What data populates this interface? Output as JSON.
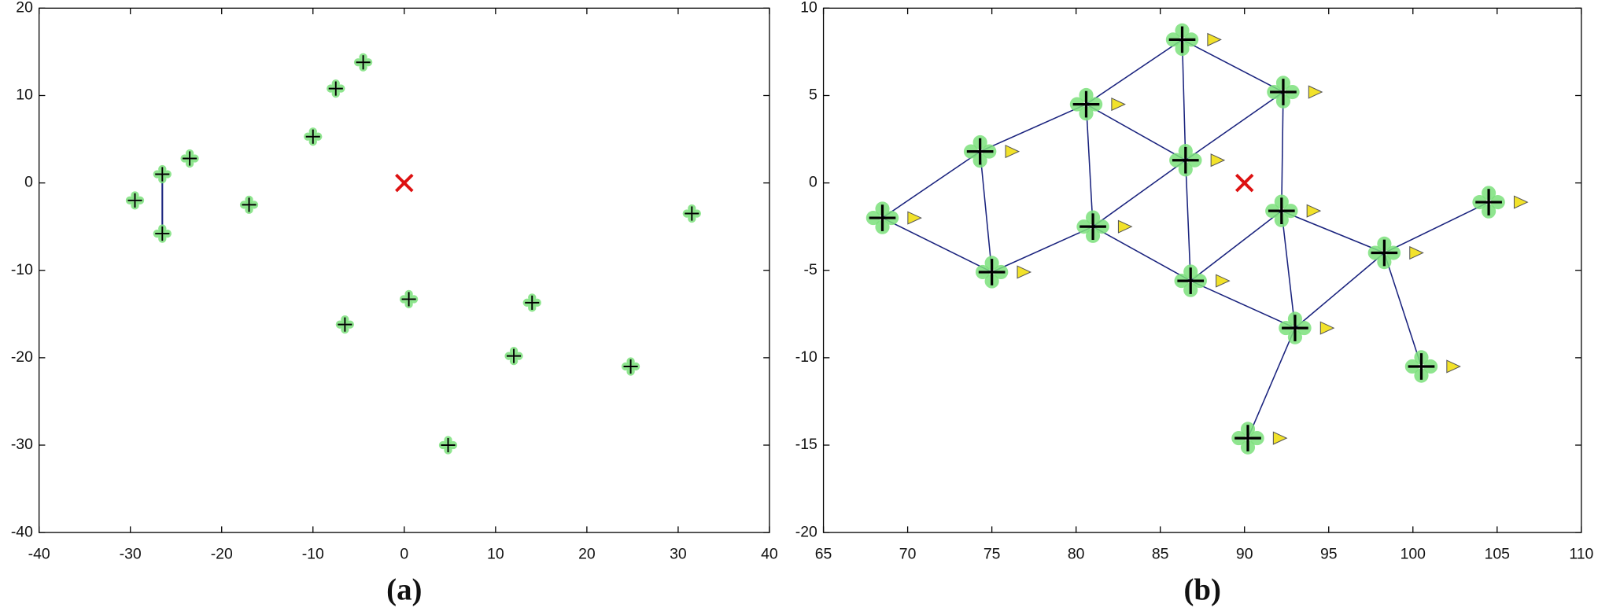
{
  "chart_data": [
    {
      "type": "scatter",
      "title": "(a)",
      "x": [
        -29.5,
        -26.5,
        -26.5,
        -23.5,
        -17,
        -10,
        -7.5,
        -4.5,
        0.5,
        -6.5,
        4.8,
        12,
        14,
        24.8,
        31.5
      ],
      "values": [
        -2,
        1,
        -5.8,
        2.8,
        -2.5,
        5.3,
        10.8,
        13.8,
        -13.3,
        -16.2,
        -30,
        -19.8,
        -13.7,
        -21,
        -3.5
      ],
      "color": "#000000",
      "links": [
        [
          1,
          2
        ]
      ],
      "target": {
        "x": 0,
        "y": 0,
        "color": "#dd1111"
      },
      "xlim": [
        -40,
        40
      ],
      "xticks": [
        -40,
        -30,
        -20,
        -10,
        0,
        10,
        20,
        30,
        40
      ],
      "ylim": [
        -40,
        20
      ],
      "yticks": [
        -40,
        -30,
        -20,
        -10,
        0,
        10,
        20
      ],
      "grid": false
    },
    {
      "type": "scatter",
      "title": "(b)",
      "x": [
        68.5,
        74.3,
        75,
        80.6,
        81,
        86.3,
        86.5,
        86.8,
        92.3,
        92.2,
        93,
        98.3,
        104.5,
        100.5,
        90.2
      ],
      "values": [
        -2,
        1.8,
        -5.1,
        4.5,
        -2.5,
        8.2,
        1.3,
        -5.6,
        5.2,
        -1.6,
        -8.3,
        -4,
        -1.1,
        -10.5,
        -14.6
      ],
      "color": "#000000",
      "links": [
        [
          0,
          1
        ],
        [
          0,
          2
        ],
        [
          1,
          2
        ],
        [
          1,
          3
        ],
        [
          2,
          4
        ],
        [
          3,
          4
        ],
        [
          3,
          5
        ],
        [
          3,
          6
        ],
        [
          4,
          6
        ],
        [
          4,
          7
        ],
        [
          5,
          6
        ],
        [
          5,
          8
        ],
        [
          6,
          8
        ],
        [
          6,
          7
        ],
        [
          7,
          9
        ],
        [
          7,
          10
        ],
        [
          8,
          9
        ],
        [
          9,
          10
        ],
        [
          9,
          11
        ],
        [
          10,
          11
        ],
        [
          10,
          14
        ],
        [
          11,
          12
        ],
        [
          11,
          13
        ]
      ],
      "target": {
        "x": 90,
        "y": 0,
        "color": "#dd1111"
      },
      "xlim": [
        65,
        110
      ],
      "xticks": [
        65,
        70,
        75,
        80,
        85,
        90,
        95,
        100,
        105,
        110
      ],
      "ylim": [
        -20,
        10
      ],
      "yticks": [
        -20,
        -15,
        -10,
        -5,
        0,
        5,
        10
      ],
      "grid": false
    }
  ]
}
